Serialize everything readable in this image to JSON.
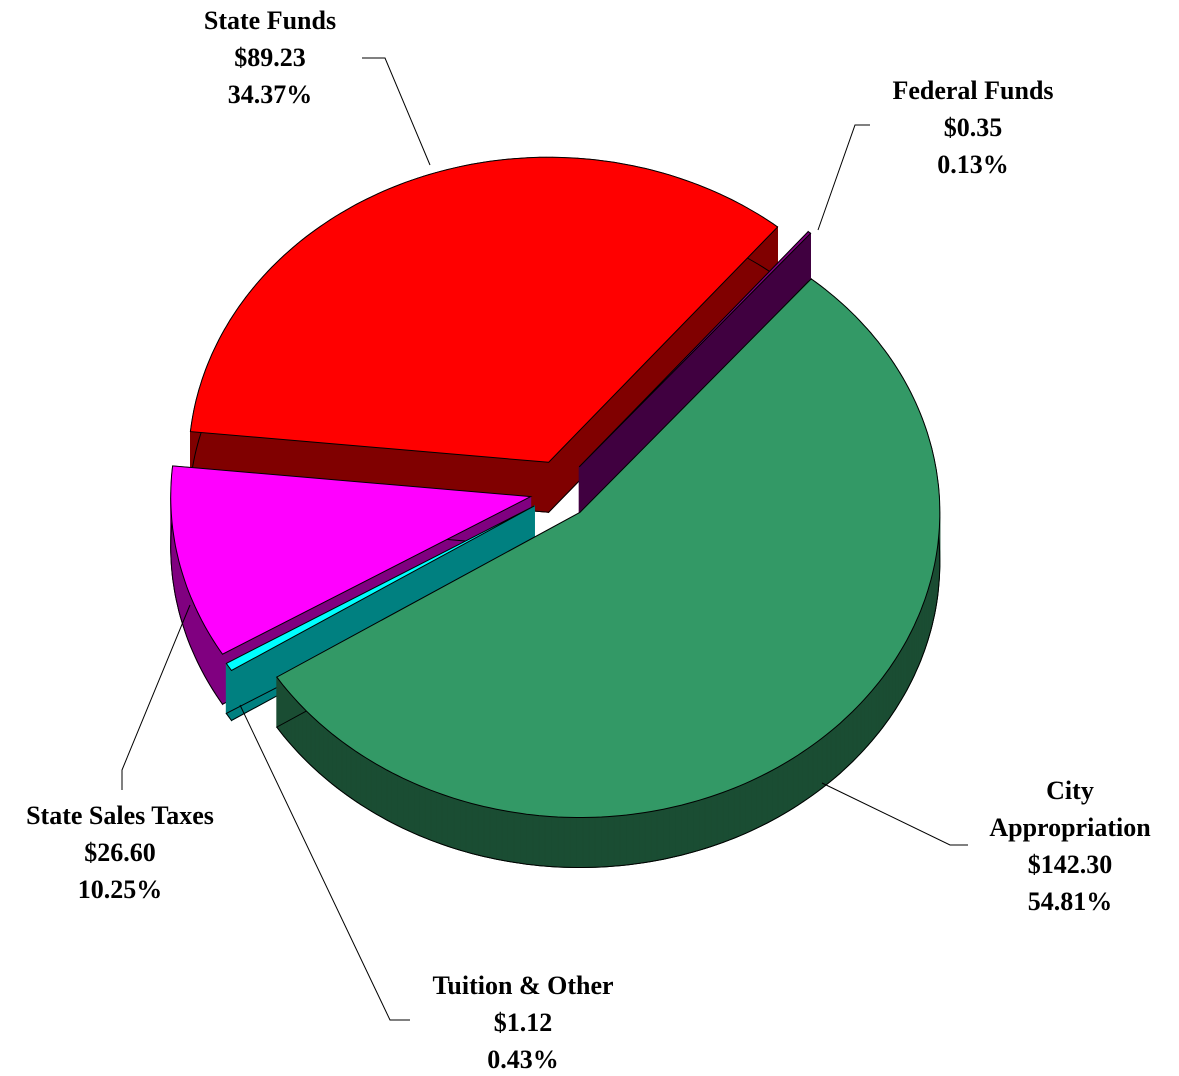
{
  "chart_data": {
    "type": "pie3d",
    "categories": [
      "City Appropriation",
      "Tuition & Other",
      "State Sales Taxes",
      "State Funds",
      "Federal Funds"
    ],
    "values": [
      142.3,
      1.12,
      26.6,
      89.23,
      0.35
    ],
    "value_labels": [
      "$142.30",
      "$1.12",
      "$26.60",
      "$89.23",
      "$0.35"
    ],
    "percentages": [
      54.81,
      0.43,
      10.25,
      34.37,
      0.13
    ],
    "percentage_labels": [
      "54.81%",
      "0.43%",
      "10.25%",
      "34.37%",
      "0.13%"
    ],
    "colors": [
      "#339966",
      "#00ffff",
      "#ff00ff",
      "#ff0000",
      "#800080"
    ]
  }
}
